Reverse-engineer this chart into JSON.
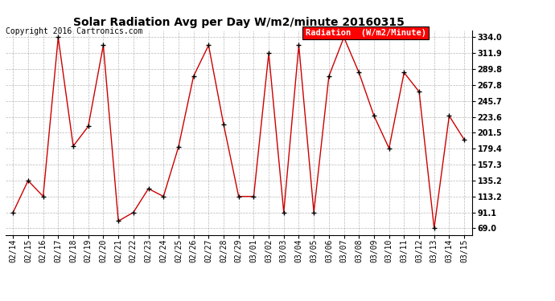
{
  "title": "Solar Radiation Avg per Day W/m2/minute 20160315",
  "copyright": "Copyright 2016 Cartronics.com",
  "legend_label": "Radiation  (W/m2/Minute)",
  "dates": [
    "02/14",
    "02/15",
    "02/16",
    "02/17",
    "02/18",
    "02/19",
    "02/20",
    "02/21",
    "02/22",
    "02/23",
    "02/24",
    "02/25",
    "02/26",
    "02/27",
    "02/28",
    "02/29",
    "03/01",
    "03/02",
    "03/03",
    "03/04",
    "03/05",
    "03/06",
    "03/07",
    "03/08",
    "03/09",
    "03/10",
    "03/11",
    "03/12",
    "03/13",
    "03/14",
    "03/15"
  ],
  "values": [
    91.1,
    135.2,
    113.2,
    334.0,
    183.0,
    210.5,
    323.0,
    79.0,
    91.1,
    124.0,
    113.2,
    182.0,
    280.0,
    323.0,
    213.0,
    113.2,
    113.2,
    311.9,
    91.1,
    323.0,
    91.1,
    280.0,
    334.0,
    285.0,
    225.0,
    180.0,
    285.0,
    258.5,
    69.0,
    225.0,
    192.0
  ],
  "line_color": "#cc0000",
  "marker_color": "#000000",
  "bg_color": "#ffffff",
  "grid_color": "#999999",
  "ylim_min": 60.0,
  "ylim_max": 344.0,
  "yticks": [
    69.0,
    91.1,
    113.2,
    135.2,
    157.3,
    179.4,
    201.5,
    223.6,
    245.7,
    267.8,
    289.8,
    311.9,
    334.0
  ],
  "title_fontsize": 10,
  "tick_fontsize": 7,
  "legend_fontsize": 7.5,
  "copyright_fontsize": 7
}
